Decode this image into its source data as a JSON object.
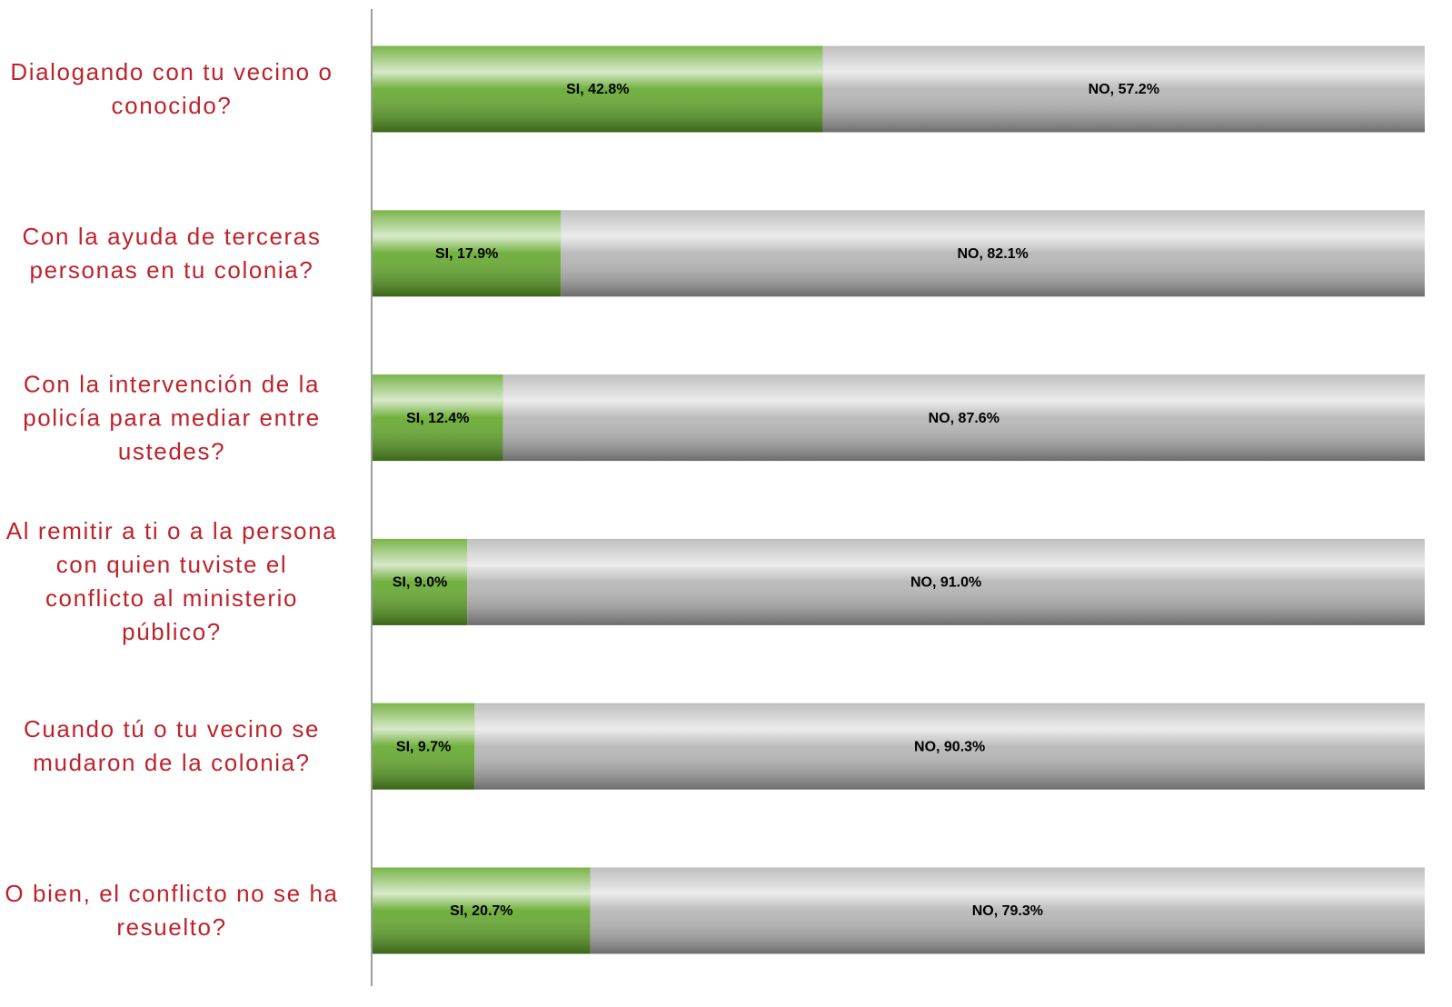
{
  "chart_data": {
    "type": "stacked-bar-horizontal",
    "categories": [
      "Dialogando con tu vecino o conocido?",
      "Con la ayuda de terceras personas en tu colonia?",
      "Con la intervención de la policía para mediar entre ustedes?",
      "Al remitir a ti o a la persona con quien tuviste el conflicto al ministerio público?",
      "Cuando tú o tu vecino se mudaron de la colonia?",
      "O bien, el conflicto no se ha resuelto?"
    ],
    "xlim": [
      0,
      100
    ],
    "series": [
      {
        "color": "#62a82a",
        "values": [
          42.8,
          17.9,
          12.4,
          9.0,
          9.7,
          20.7
        ],
        "value_labels": [
          "SI, 42.8%",
          "SI, 17.9%",
          "SI, 12.4%",
          "SI, 9.0%",
          "SI, 9.7%",
          "SI, 20.7%"
        ]
      },
      {
        "color": "#b4b4b4",
        "values": [
          57.2,
          82.1,
          87.6,
          91.0,
          90.3,
          79.3
        ],
        "value_labels": [
          "NO, 57.2%",
          "NO, 82.1%",
          "NO, 87.6%",
          "NO, 91.0%",
          "NO, 90.3%",
          "NO, 79.3%"
        ]
      }
    ]
  }
}
